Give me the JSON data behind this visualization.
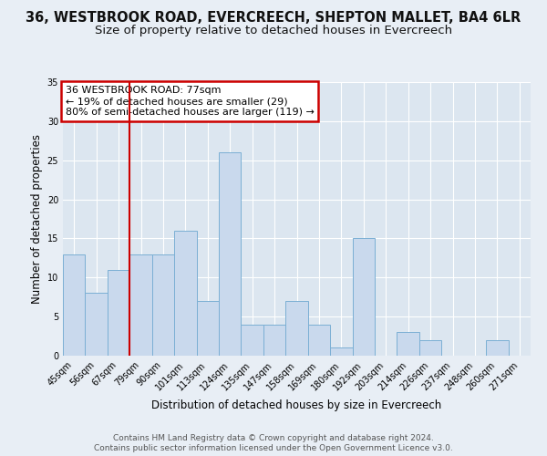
{
  "title_line1": "36, WESTBROOK ROAD, EVERCREECH, SHEPTON MALLET, BA4 6LR",
  "title_line2": "Size of property relative to detached houses in Evercreech",
  "xlabel": "Distribution of detached houses by size in Evercreech",
  "ylabel": "Number of detached properties",
  "bin_labels": [
    "45sqm",
    "56sqm",
    "67sqm",
    "79sqm",
    "90sqm",
    "101sqm",
    "113sqm",
    "124sqm",
    "135sqm",
    "147sqm",
    "158sqm",
    "169sqm",
    "180sqm",
    "192sqm",
    "203sqm",
    "214sqm",
    "226sqm",
    "237sqm",
    "248sqm",
    "260sqm",
    "271sqm"
  ],
  "bar_values": [
    13,
    8,
    11,
    13,
    13,
    16,
    7,
    26,
    4,
    4,
    7,
    4,
    1,
    15,
    0,
    3,
    2,
    0,
    0,
    2,
    0
  ],
  "bar_color": "#c9d9ed",
  "bar_edge_color": "#7bafd4",
  "bar_width": 1.0,
  "vline_color": "#cc0000",
  "annotation_title": "36 WESTBROOK ROAD: 77sqm",
  "annotation_line2": "← 19% of detached houses are smaller (29)",
  "annotation_line3": "80% of semi-detached houses are larger (119) →",
  "annotation_box_color": "#cc0000",
  "annotation_text_color": "#000000",
  "ylim": [
    0,
    35
  ],
  "yticks": [
    0,
    5,
    10,
    15,
    20,
    25,
    30,
    35
  ],
  "background_color": "#e8eef5",
  "plot_bg_color": "#dce6f0",
  "grid_color": "#ffffff",
  "footer_line1": "Contains HM Land Registry data © Crown copyright and database right 2024.",
  "footer_line2": "Contains public sector information licensed under the Open Government Licence v3.0.",
  "title_fontsize": 10.5,
  "subtitle_fontsize": 9.5,
  "axis_label_fontsize": 8.5,
  "tick_fontsize": 7,
  "footer_fontsize": 6.5,
  "annotation_fontsize": 8
}
